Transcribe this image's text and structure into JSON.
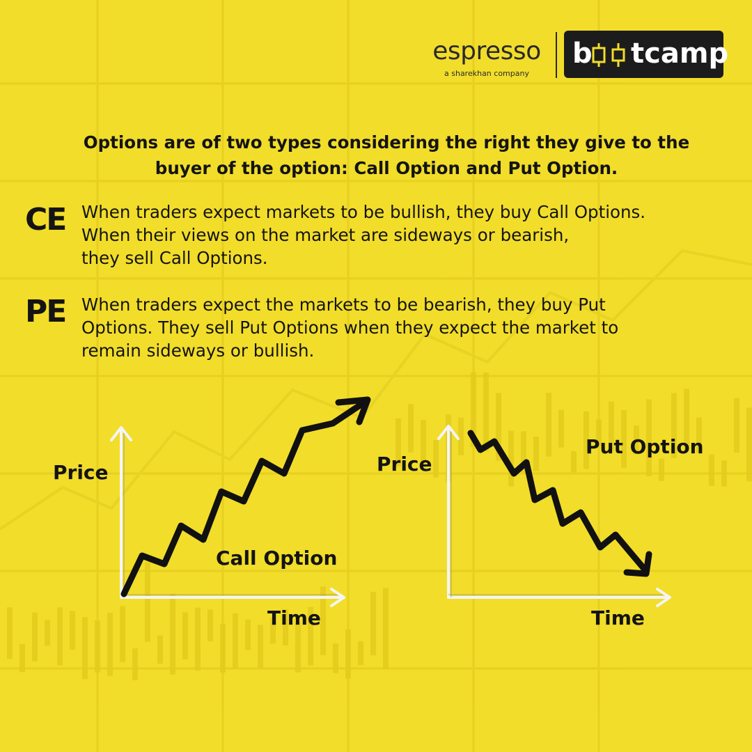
{
  "brand": {
    "name": "espresso",
    "tagline": "a sharekhan company",
    "badge_text_start": "b",
    "badge_text_end": "tcamp",
    "badge_full": "bootcamp",
    "badge_color": "#1c1c1c",
    "candle_color": "#f2dd2a"
  },
  "headline": "Options are of two types considering the right they give to the buyer of the option: Call Option and Put Option.",
  "sections": [
    {
      "tag": "CE",
      "text": "When traders expect markets to be bullish, they buy Call Options.\nWhen their views on the market are sideways or bearish,\nthey sell Call Options."
    },
    {
      "tag": "PE",
      "text": "When traders expect the markets to be bearish, they buy Put\nOptions. They sell Put Options when they expect the market to\nremain sideways or bullish."
    }
  ],
  "call_chart": {
    "y_label": "Price",
    "x_label": "Time",
    "title": "Call Option",
    "trend": "up"
  },
  "put_chart": {
    "y_label": "Price",
    "x_label": "Time",
    "title": "Put Option",
    "trend": "down"
  },
  "colors": {
    "background": "#f2dd2a",
    "text": "#141414",
    "axis": "#f5f5f5",
    "line": "#111111"
  }
}
